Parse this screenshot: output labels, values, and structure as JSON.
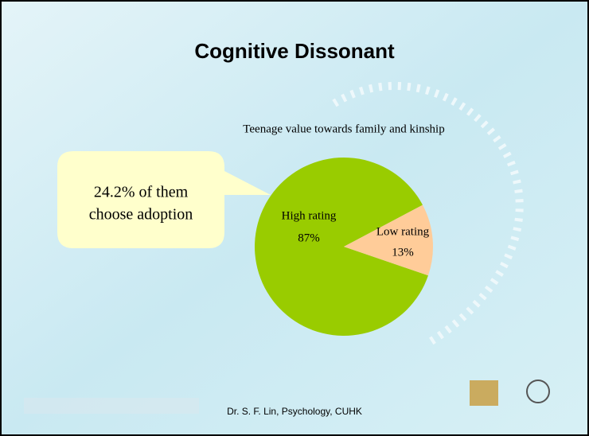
{
  "slide": {
    "title": "Cognitive Dissonant",
    "callout": [
      "24.2% of them",
      "choose adoption"
    ],
    "footer": "Dr. S. F. Lin, Psychology, CUHK"
  },
  "chart_data": {
    "type": "pie",
    "title": "Teenage value towards family and kinship",
    "categories": [
      "High rating",
      "Low rating"
    ],
    "values": [
      87,
      13
    ],
    "value_labels": [
      "87%",
      "13%"
    ],
    "colors": [
      "#99cc00",
      "#ffcc99"
    ]
  }
}
